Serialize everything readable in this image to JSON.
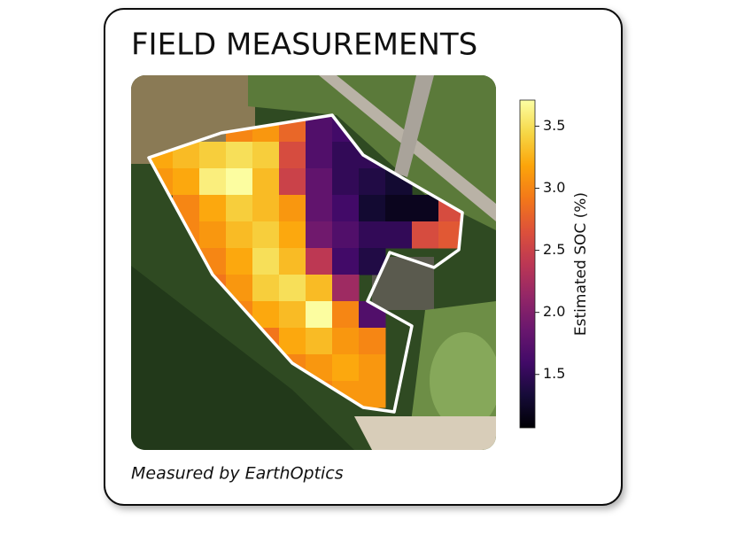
{
  "title": "FIELD MEASUREMENTS",
  "caption": "Measured by EarthOptics",
  "colorbar": {
    "label": "Estimated SOC (%)",
    "lim": [
      1.07,
      3.71
    ],
    "ticks": [
      1.5,
      {
        "value": 2,
        "label": "2.0"
      },
      2.5,
      {
        "value": 3,
        "label": "3.0"
      },
      3.5
    ]
  },
  "grid": {
    "values": [
      [
        null,
        null,
        null,
        3.0,
        3.1,
        2.8,
        1.7,
        1.6,
        null,
        null,
        null,
        null
      ],
      [
        3.2,
        3.3,
        3.4,
        3.5,
        3.4,
        2.6,
        1.7,
        1.5,
        1.5,
        null,
        null,
        null
      ],
      [
        3.1,
        3.2,
        3.6,
        3.7,
        3.3,
        2.5,
        1.8,
        1.5,
        1.4,
        1.3,
        null,
        null
      ],
      [
        null,
        3.0,
        3.2,
        3.4,
        3.3,
        3.1,
        1.8,
        1.6,
        1.3,
        1.2,
        1.2,
        2.6
      ],
      [
        null,
        3.0,
        3.1,
        3.3,
        3.4,
        3.2,
        1.9,
        1.7,
        1.5,
        1.5,
        2.6,
        2.7
      ],
      [
        null,
        null,
        3.0,
        3.2,
        3.5,
        3.3,
        2.4,
        1.6,
        1.4,
        null,
        null,
        null
      ],
      [
        null,
        null,
        2.9,
        3.1,
        3.4,
        3.5,
        3.3,
        2.2,
        null,
        null,
        null,
        null
      ],
      [
        null,
        null,
        null,
        3.0,
        3.2,
        3.3,
        3.7,
        3.0,
        1.7,
        null,
        null,
        null
      ],
      [
        null,
        null,
        null,
        2.7,
        2.9,
        3.2,
        3.3,
        3.1,
        3.0,
        null,
        null,
        null
      ],
      [
        null,
        null,
        null,
        null,
        2.8,
        3.0,
        3.1,
        3.2,
        3.1,
        null,
        null,
        null
      ],
      [
        null,
        null,
        null,
        null,
        null,
        null,
        3.0,
        3.1,
        3.1,
        null,
        null,
        null
      ]
    ]
  }
}
